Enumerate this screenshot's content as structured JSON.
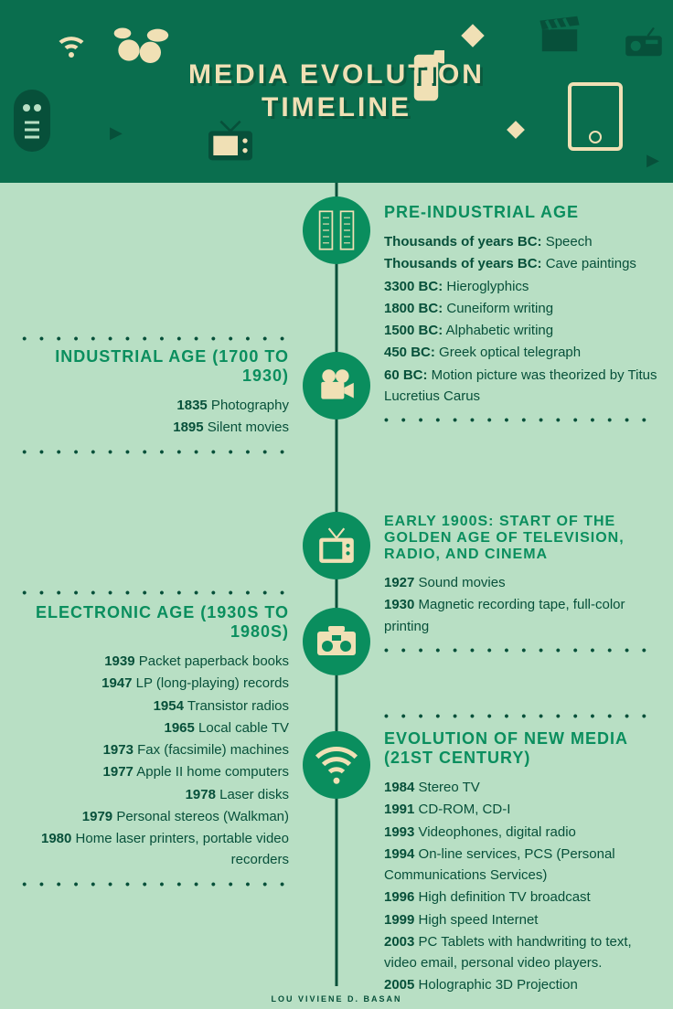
{
  "title_l1": "MEDIA EVOLUTION",
  "title_l2": "TIMELINE",
  "footer": "LOU VIVIENE D. BASAN",
  "colors": {
    "bg": "#b8dfc4",
    "header": "#0a6e4e",
    "accent": "#0a8e5e",
    "dark": "#07503a",
    "cream": "#f0e0b5"
  },
  "sec1": {
    "title": "PRE-INDUSTRIAL AGE",
    "items": [
      {
        "y": "Thousands of years BC:",
        "t": " Speech"
      },
      {
        "y": "Thousands of years BC:",
        "t": " Cave paintings"
      },
      {
        "y": "3300 BC:",
        "t": " Hieroglyphics"
      },
      {
        "y": "1800 BC:",
        "t": " Cuneiform writing"
      },
      {
        "y": "1500 BC:",
        "t": " Alphabetic writing"
      },
      {
        "y": "450 BC:",
        "t": " Greek optical telegraph"
      },
      {
        "y": "60 BC:",
        "t": " Motion picture was theorized by Titus Lucretius Carus"
      }
    ]
  },
  "sec2": {
    "title": "INDUSTRIAL AGE (1700 TO 1930)",
    "items": [
      {
        "y": "1835",
        "t": " Photography"
      },
      {
        "y": "1895",
        "t": " Silent movies"
      }
    ]
  },
  "sec3": {
    "title": "EARLY 1900S: START OF THE GOLDEN AGE OF TELEVISION, RADIO, AND CINEMA",
    "items": [
      {
        "y": "1927",
        "t": " Sound movies"
      },
      {
        "y": "1930",
        "t": " Magnetic recording tape, full-color printing"
      }
    ]
  },
  "sec4": {
    "title": "ELECTRONIC AGE (1930S TO 1980S)",
    "items": [
      {
        "y": "1939",
        "t": " Packet paperback books"
      },
      {
        "y": "1947",
        "t": " LP (long-playing) records"
      },
      {
        "y": "1954",
        "t": " Transistor radios"
      },
      {
        "y": "1965",
        "t": " Local cable TV"
      },
      {
        "y": "1973",
        "t": " Fax (facsimile) machines"
      },
      {
        "y": "1977",
        "t": " Apple II home computers"
      },
      {
        "y": "1978",
        "t": " Laser disks"
      },
      {
        "y": "1979",
        "t": " Personal stereos (Walkman)"
      },
      {
        "y": "1980",
        "t": " Home laser printers, portable video recorders"
      }
    ]
  },
  "sec5": {
    "title": "EVOLUTION OF NEW MEDIA (21ST CENTURY)",
    "items": [
      {
        "y": "1984",
        "t": " Stereo TV"
      },
      {
        "y": "1991",
        "t": " CD-ROM, CD-I"
      },
      {
        "y": "1993",
        "t": " Videophones, digital radio"
      },
      {
        "y": "1994",
        "t": " On-line services, PCS (Personal Communications Services)"
      },
      {
        "y": "1996",
        "t": " High definition TV broadcast"
      },
      {
        "y": "1999",
        "t": " High speed Internet"
      },
      {
        "y": "2003",
        "t": " PC Tablets with handwriting to text, video email, personal video players."
      },
      {
        "y": "2005",
        "t": " Holographic 3D Projection"
      }
    ]
  },
  "dots": "• • • • • • • • • • • • • • • •"
}
